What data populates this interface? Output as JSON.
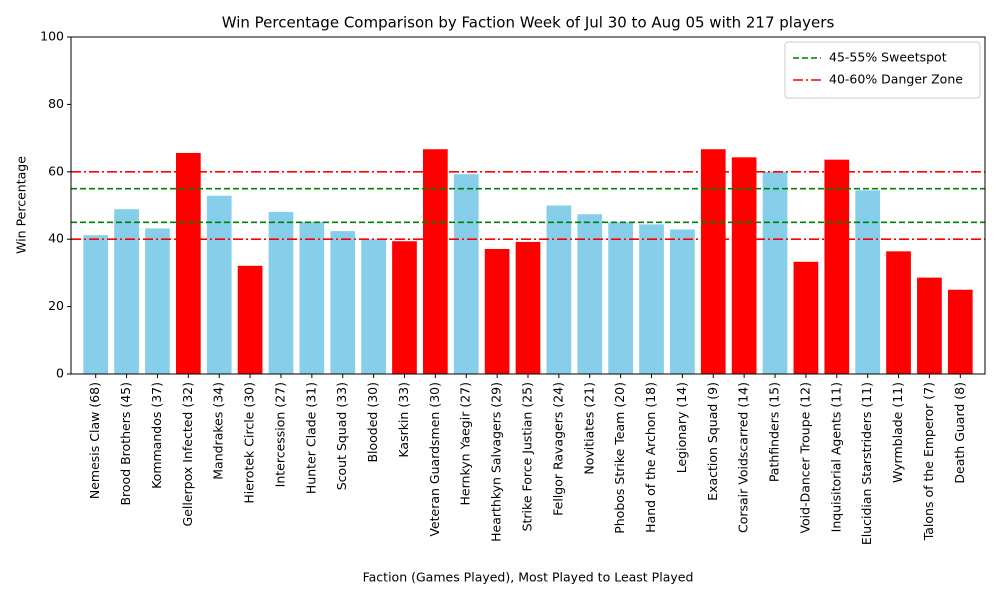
{
  "chart_data": {
    "type": "bar",
    "title": "Win Percentage Comparison by Faction Week of Jul 30 to Aug 05 with 217 players",
    "xlabel": "Faction (Games Played), Most Played to Least Played",
    "ylabel": "Win Percentage",
    "categories": [
      "Nemesis Claw (68)",
      "Brood Brothers (45)",
      "Kommandos (37)",
      "Gellerpox Infected (32)",
      "Mandrakes (34)",
      "Hierotek Circle (30)",
      "Intercession (27)",
      "Hunter Clade (31)",
      "Scout Squad (33)",
      "Blooded (30)",
      "Kasrkin (33)",
      "Veteran Guardsmen (30)",
      "Hernkyn Yaegir (27)",
      "Hearthkyn Salvagers (29)",
      "Strike Force Justian (25)",
      "Fellgor Ravagers (24)",
      "Novitiates (21)",
      "Phobos Strike Team (20)",
      "Hand of the Archon (18)",
      "Legionary (14)",
      "Exaction Squad (9)",
      "Corsair Voidscarred (14)",
      "Pathfinders (15)",
      "Void-Dancer Troupe (12)",
      "Inquisitorial Agents (11)",
      "Elucidian Starstriders (11)",
      "Wyrmblade (11)",
      "Talons of the Emperor (7)",
      "Death Guard (8)"
    ],
    "values": [
      41.2,
      48.9,
      43.2,
      65.6,
      52.9,
      32.1,
      48.1,
      45.2,
      42.4,
      40.0,
      39.4,
      66.7,
      59.3,
      37.1,
      39.2,
      50.0,
      47.4,
      45.0,
      44.4,
      42.9,
      66.7,
      64.3,
      60.0,
      33.3,
      63.6,
      54.5,
      36.4,
      28.6,
      25.0
    ],
    "colors": [
      "skyblue",
      "skyblue",
      "skyblue",
      "red",
      "skyblue",
      "red",
      "skyblue",
      "skyblue",
      "skyblue",
      "skyblue",
      "red",
      "red",
      "skyblue",
      "red",
      "red",
      "skyblue",
      "skyblue",
      "skyblue",
      "skyblue",
      "skyblue",
      "red",
      "red",
      "skyblue",
      "red",
      "red",
      "skyblue",
      "red",
      "red",
      "red"
    ],
    "ylim": [
      0,
      100
    ],
    "yticks": [
      0,
      20,
      40,
      60,
      80,
      100
    ],
    "reference_lines": [
      {
        "name": "45-55% Sweetspot",
        "values": [
          45,
          55
        ],
        "color": "green",
        "dash": "6,3"
      },
      {
        "name": "40-60% Danger Zone",
        "values": [
          40,
          60
        ],
        "color": "red",
        "dash": "10,3,2,3"
      }
    ],
    "legend": "upper right"
  }
}
